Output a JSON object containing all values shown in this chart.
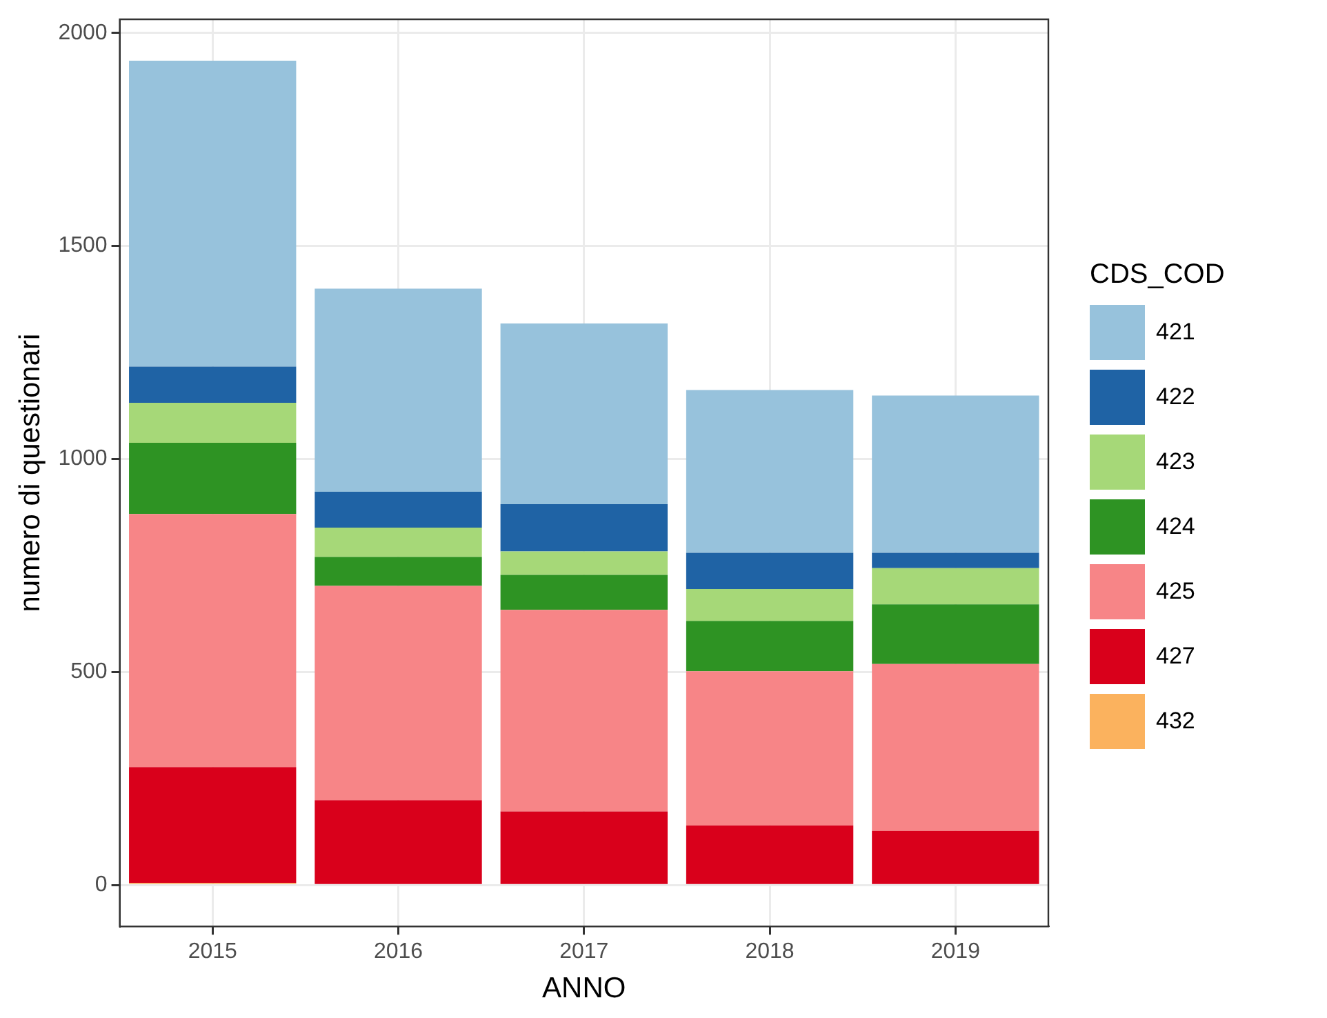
{
  "chart_data": {
    "type": "bar",
    "stacked": true,
    "xlabel": "ANNO",
    "ylabel": "numero di questionari",
    "legend_title": "CDS_COD",
    "legend": "right",
    "grid": true,
    "categories": [
      "2015",
      "2016",
      "2017",
      "2018",
      "2019"
    ],
    "ylim": [
      -97,
      2032
    ],
    "yticks": [
      0,
      500,
      1000,
      1500,
      2000
    ],
    "series": [
      {
        "name": "432",
        "color": "#fbb25e",
        "values": [
          5,
          0,
          0,
          0,
          0
        ]
      },
      {
        "name": "427",
        "color": "#d9001b",
        "values": [
          272,
          199,
          173,
          140,
          127
        ]
      },
      {
        "name": "425",
        "color": "#f78587",
        "values": [
          594,
          503,
          473,
          362,
          392
        ]
      },
      {
        "name": "424",
        "color": "#2e9323",
        "values": [
          167,
          68,
          82,
          118,
          140
        ]
      },
      {
        "name": "423",
        "color": "#a6d878",
        "values": [
          94,
          69,
          55,
          75,
          85
        ]
      },
      {
        "name": "422",
        "color": "#1f63a5",
        "values": [
          85,
          84,
          111,
          85,
          36
        ]
      },
      {
        "name": "421",
        "color": "#97c2dc",
        "values": [
          718,
          477,
          424,
          382,
          369
        ]
      }
    ]
  }
}
